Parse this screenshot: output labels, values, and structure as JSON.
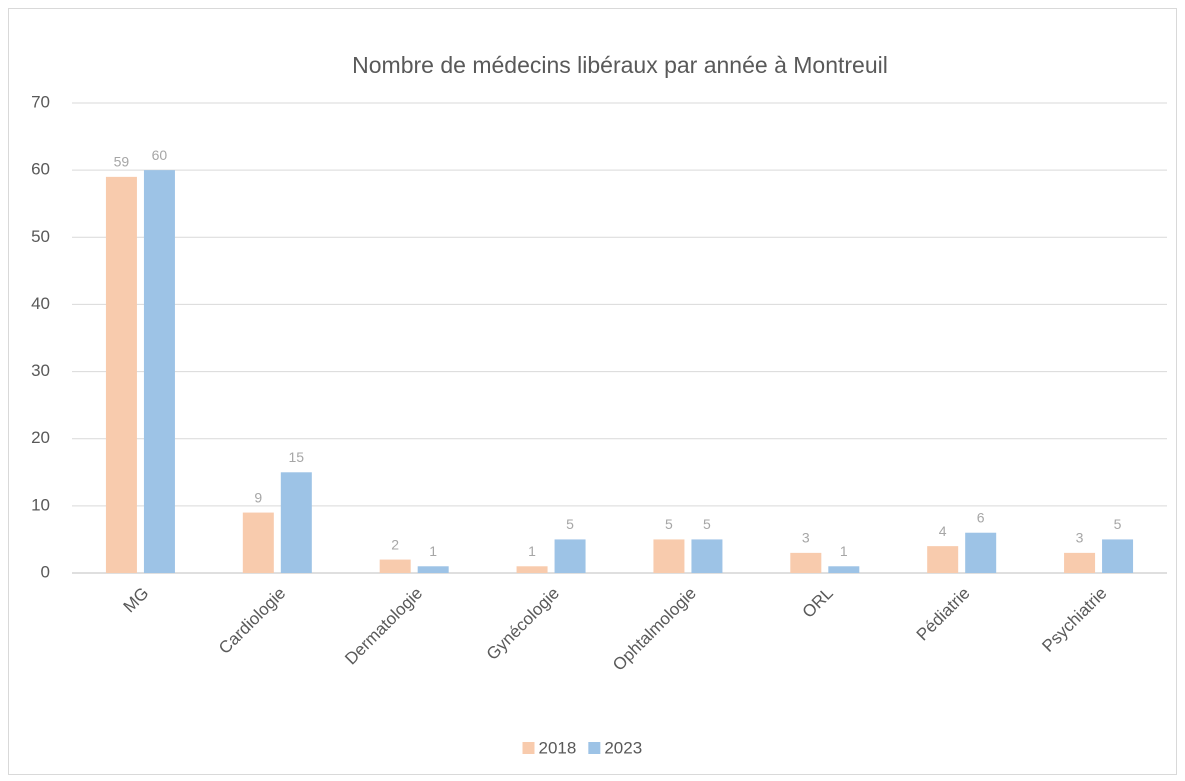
{
  "chart_data": {
    "type": "bar",
    "title": "Nombre de médecins libéraux par année à Montreuil",
    "categories": [
      "MG",
      "Cardiologie",
      "Dermatologie",
      "Gynécologie",
      "Ophtalmologie",
      "ORL",
      "Pédiatrie",
      "Psychiatrie"
    ],
    "series": [
      {
        "name": "2018",
        "color": "#f8cbad",
        "values": [
          59,
          9,
          2,
          1,
          5,
          3,
          4,
          3
        ]
      },
      {
        "name": "2023",
        "color": "#9dc3e6",
        "values": [
          60,
          15,
          1,
          5,
          5,
          1,
          6,
          5
        ]
      }
    ],
    "ylim": [
      0,
      70
    ],
    "yticks": [
      0,
      10,
      20,
      30,
      40,
      50,
      60,
      70
    ],
    "grid": true,
    "legend": "bottom"
  }
}
